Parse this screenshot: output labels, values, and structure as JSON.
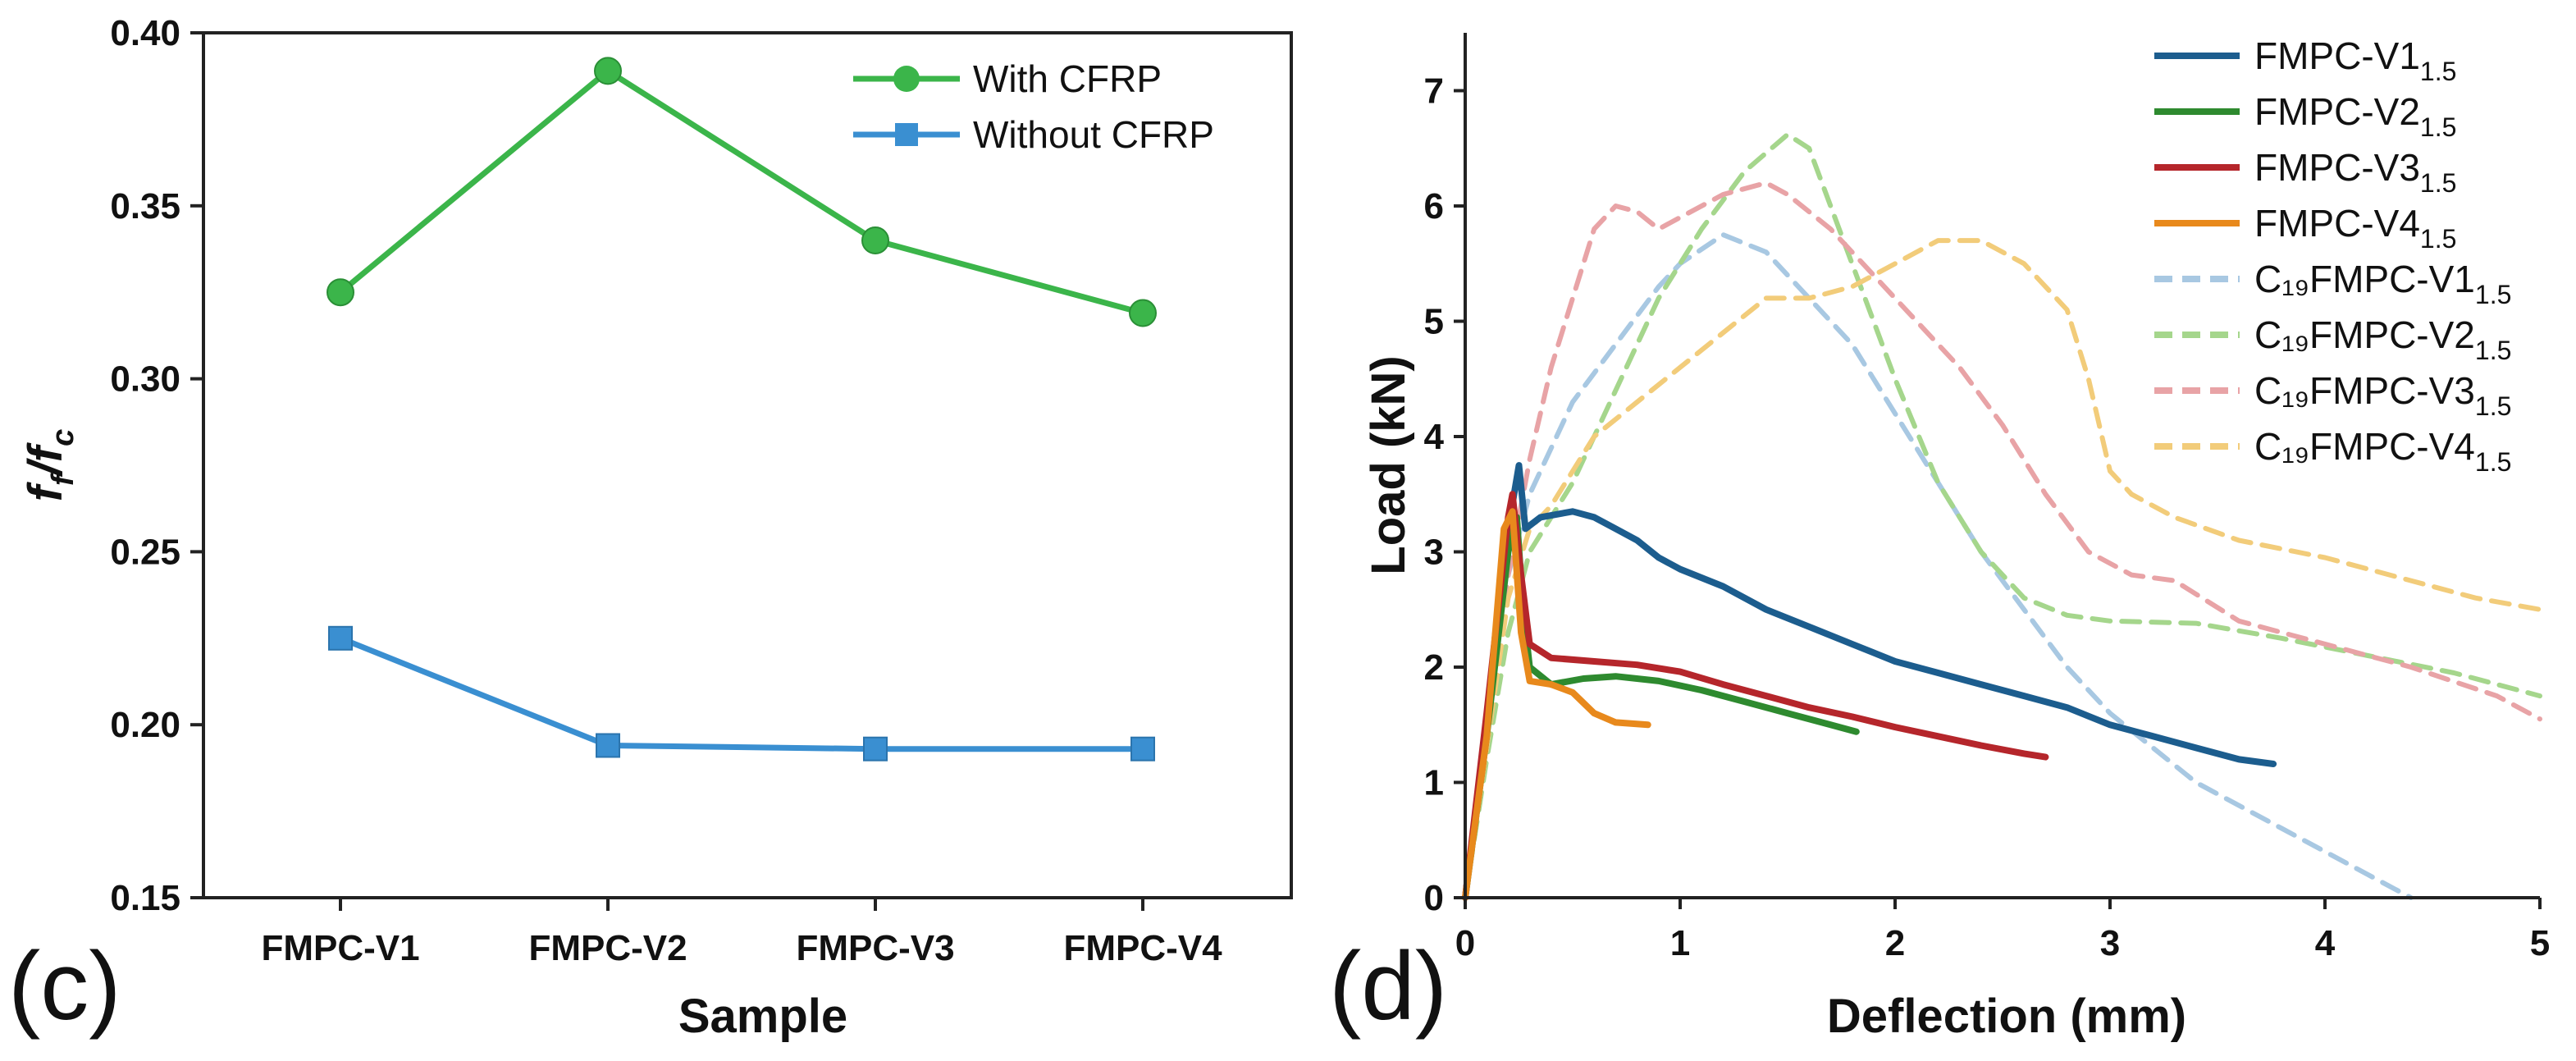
{
  "chart_data": [
    {
      "type": "line",
      "panel_label": "(c)",
      "xlabel": "Sample",
      "ylabel_main": "f",
      "ylabel_sub1": "f",
      "ylabel_sep": "/",
      "ylabel_sub2": "c",
      "categories": [
        "FMPC-V1",
        "FMPC-V2",
        "FMPC-V3",
        "FMPC-V4"
      ],
      "ylim": [
        0.15,
        0.4
      ],
      "yticks": [
        "0.15",
        "0.20",
        "0.25",
        "0.30",
        "0.35",
        "0.40"
      ],
      "legend_position": "top-right",
      "series": [
        {
          "name": "With CFRP",
          "color": "#3bb54a",
          "marker": "circle",
          "values": [
            0.325,
            0.389,
            0.34,
            0.319
          ]
        },
        {
          "name": "Without CFRP",
          "color": "#3a8fd1",
          "marker": "square",
          "values": [
            0.225,
            0.194,
            0.193,
            0.193
          ]
        }
      ]
    },
    {
      "type": "line",
      "panel_label": "(d)",
      "xlabel": "Deflection (mm)",
      "ylabel": "Load (kN)",
      "xlim": [
        0,
        5
      ],
      "ylim": [
        0,
        7.5
      ],
      "xticks": [
        "0",
        "1",
        "2",
        "3",
        "4",
        "5"
      ],
      "yticks": [
        "0",
        "1",
        "2",
        "3",
        "4",
        "5",
        "6",
        "7"
      ],
      "legend_position": "top-right",
      "series": [
        {
          "name": "FMPC-V1",
          "subscript": "1.5",
          "color": "#1c5d8e",
          "dashed": false,
          "points": [
            [
              0,
              0
            ],
            [
              0.1,
              1.5
            ],
            [
              0.2,
              3.2
            ],
            [
              0.25,
              3.75
            ],
            [
              0.28,
              3.2
            ],
            [
              0.35,
              3.3
            ],
            [
              0.5,
              3.35
            ],
            [
              0.6,
              3.3
            ],
            [
              0.7,
              3.2
            ],
            [
              0.8,
              3.1
            ],
            [
              0.9,
              2.95
            ],
            [
              1.0,
              2.85
            ],
            [
              1.2,
              2.7
            ],
            [
              1.4,
              2.5
            ],
            [
              1.6,
              2.35
            ],
            [
              1.8,
              2.2
            ],
            [
              2.0,
              2.05
            ],
            [
              2.2,
              1.95
            ],
            [
              2.4,
              1.85
            ],
            [
              2.6,
              1.75
            ],
            [
              2.8,
              1.65
            ],
            [
              3.0,
              1.5
            ],
            [
              3.2,
              1.4
            ],
            [
              3.4,
              1.3
            ],
            [
              3.6,
              1.2
            ],
            [
              3.76,
              1.16
            ]
          ]
        },
        {
          "name": "FMPC-V2",
          "subscript": "1.5",
          "color": "#2e8a2f",
          "dashed": false,
          "points": [
            [
              0,
              0
            ],
            [
              0.1,
              1.4
            ],
            [
              0.2,
              3.0
            ],
            [
              0.24,
              3.3
            ],
            [
              0.27,
              2.5
            ],
            [
              0.3,
              2.0
            ],
            [
              0.4,
              1.85
            ],
            [
              0.55,
              1.9
            ],
            [
              0.7,
              1.92
            ],
            [
              0.9,
              1.88
            ],
            [
              1.1,
              1.8
            ],
            [
              1.3,
              1.7
            ],
            [
              1.5,
              1.6
            ],
            [
              1.7,
              1.5
            ],
            [
              1.82,
              1.44
            ]
          ]
        },
        {
          "name": "FMPC-V3",
          "subscript": "1.5",
          "color": "#b5262b",
          "dashed": false,
          "points": [
            [
              0,
              0
            ],
            [
              0.1,
              1.6
            ],
            [
              0.2,
              3.3
            ],
            [
              0.22,
              3.5
            ],
            [
              0.26,
              2.8
            ],
            [
              0.3,
              2.2
            ],
            [
              0.4,
              2.08
            ],
            [
              0.6,
              2.05
            ],
            [
              0.8,
              2.02
            ],
            [
              1.0,
              1.96
            ],
            [
              1.2,
              1.85
            ],
            [
              1.4,
              1.75
            ],
            [
              1.6,
              1.65
            ],
            [
              1.8,
              1.57
            ],
            [
              2.0,
              1.48
            ],
            [
              2.2,
              1.4
            ],
            [
              2.4,
              1.32
            ],
            [
              2.6,
              1.25
            ],
            [
              2.7,
              1.22
            ]
          ]
        },
        {
          "name": "FMPC-V4",
          "subscript": "1.5",
          "color": "#e8891c",
          "dashed": false,
          "points": [
            [
              0,
              0
            ],
            [
              0.1,
              1.4
            ],
            [
              0.18,
              3.2
            ],
            [
              0.22,
              3.35
            ],
            [
              0.26,
              2.3
            ],
            [
              0.3,
              1.88
            ],
            [
              0.4,
              1.85
            ],
            [
              0.5,
              1.78
            ],
            [
              0.6,
              1.6
            ],
            [
              0.7,
              1.52
            ],
            [
              0.85,
              1.5
            ]
          ]
        },
        {
          "name": "C₁₉FMPC-V1",
          "subscript": "1.5",
          "color": "#a8c8e2",
          "dashed": true,
          "points": [
            [
              0,
              0
            ],
            [
              0.1,
              1.5
            ],
            [
              0.2,
              2.8
            ],
            [
              0.3,
              3.5
            ],
            [
              0.5,
              4.3
            ],
            [
              0.7,
              4.8
            ],
            [
              0.9,
              5.3
            ],
            [
              1.0,
              5.5
            ],
            [
              1.2,
              5.75
            ],
            [
              1.4,
              5.6
            ],
            [
              1.6,
              5.2
            ],
            [
              1.8,
              4.8
            ],
            [
              2.0,
              4.2
            ],
            [
              2.2,
              3.6
            ],
            [
              2.4,
              3.0
            ],
            [
              2.6,
              2.5
            ],
            [
              2.8,
              2.0
            ],
            [
              3.0,
              1.6
            ],
            [
              3.2,
              1.3
            ],
            [
              3.4,
              1.0
            ],
            [
              3.6,
              0.8
            ],
            [
              3.8,
              0.6
            ],
            [
              4.0,
              0.4
            ],
            [
              4.2,
              0.2
            ],
            [
              4.4,
              0.0
            ]
          ]
        },
        {
          "name": "C₁₉FMPC-V2",
          "subscript": "1.5",
          "color": "#a5d68c",
          "dashed": true,
          "points": [
            [
              0,
              0
            ],
            [
              0.1,
              1.2
            ],
            [
              0.2,
              2.3
            ],
            [
              0.3,
              3.0
            ],
            [
              0.5,
              3.6
            ],
            [
              0.7,
              4.4
            ],
            [
              0.9,
              5.2
            ],
            [
              1.1,
              5.8
            ],
            [
              1.3,
              6.3
            ],
            [
              1.5,
              6.62
            ],
            [
              1.6,
              6.5
            ],
            [
              1.8,
              5.5
            ],
            [
              2.0,
              4.5
            ],
            [
              2.2,
              3.6
            ],
            [
              2.4,
              3.0
            ],
            [
              2.6,
              2.6
            ],
            [
              2.8,
              2.45
            ],
            [
              3.0,
              2.4
            ],
            [
              3.4,
              2.38
            ],
            [
              3.8,
              2.25
            ],
            [
              4.2,
              2.1
            ],
            [
              4.6,
              1.95
            ],
            [
              5.0,
              1.75
            ]
          ]
        },
        {
          "name": "C₁₉FMPC-V3",
          "subscript": "1.5",
          "color": "#e8a3a6",
          "dashed": true,
          "points": [
            [
              0,
              0
            ],
            [
              0.1,
              1.3
            ],
            [
              0.2,
              2.8
            ],
            [
              0.3,
              3.8
            ],
            [
              0.4,
              4.6
            ],
            [
              0.5,
              5.2
            ],
            [
              0.6,
              5.8
            ],
            [
              0.7,
              6.0
            ],
            [
              0.8,
              5.95
            ],
            [
              0.9,
              5.8
            ],
            [
              1.0,
              5.9
            ],
            [
              1.2,
              6.1
            ],
            [
              1.4,
              6.2
            ],
            [
              1.5,
              6.1
            ],
            [
              1.7,
              5.8
            ],
            [
              1.9,
              5.4
            ],
            [
              2.1,
              5.0
            ],
            [
              2.3,
              4.6
            ],
            [
              2.5,
              4.1
            ],
            [
              2.7,
              3.5
            ],
            [
              2.9,
              3.0
            ],
            [
              3.1,
              2.8
            ],
            [
              3.3,
              2.75
            ],
            [
              3.6,
              2.4
            ],
            [
              4.0,
              2.2
            ],
            [
              4.4,
              2.0
            ],
            [
              4.8,
              1.75
            ],
            [
              5.0,
              1.55
            ]
          ]
        },
        {
          "name": "C₁₉FMPC-V4",
          "subscript": "1.5",
          "color": "#f2cc7a",
          "dashed": true,
          "points": [
            [
              0,
              0
            ],
            [
              0.1,
              1.3
            ],
            [
              0.2,
              2.6
            ],
            [
              0.3,
              3.2
            ],
            [
              0.4,
              3.4
            ],
            [
              0.6,
              4.0
            ],
            [
              0.8,
              4.3
            ],
            [
              1.0,
              4.6
            ],
            [
              1.2,
              4.9
            ],
            [
              1.4,
              5.2
            ],
            [
              1.6,
              5.2
            ],
            [
              1.8,
              5.3
            ],
            [
              2.0,
              5.5
            ],
            [
              2.2,
              5.7
            ],
            [
              2.4,
              5.7
            ],
            [
              2.6,
              5.5
            ],
            [
              2.8,
              5.1
            ],
            [
              2.9,
              4.5
            ],
            [
              3.0,
              3.7
            ],
            [
              3.1,
              3.5
            ],
            [
              3.3,
              3.3
            ],
            [
              3.6,
              3.1
            ],
            [
              4.0,
              2.95
            ],
            [
              4.4,
              2.75
            ],
            [
              4.7,
              2.6
            ],
            [
              5.0,
              2.5
            ]
          ]
        }
      ]
    }
  ]
}
